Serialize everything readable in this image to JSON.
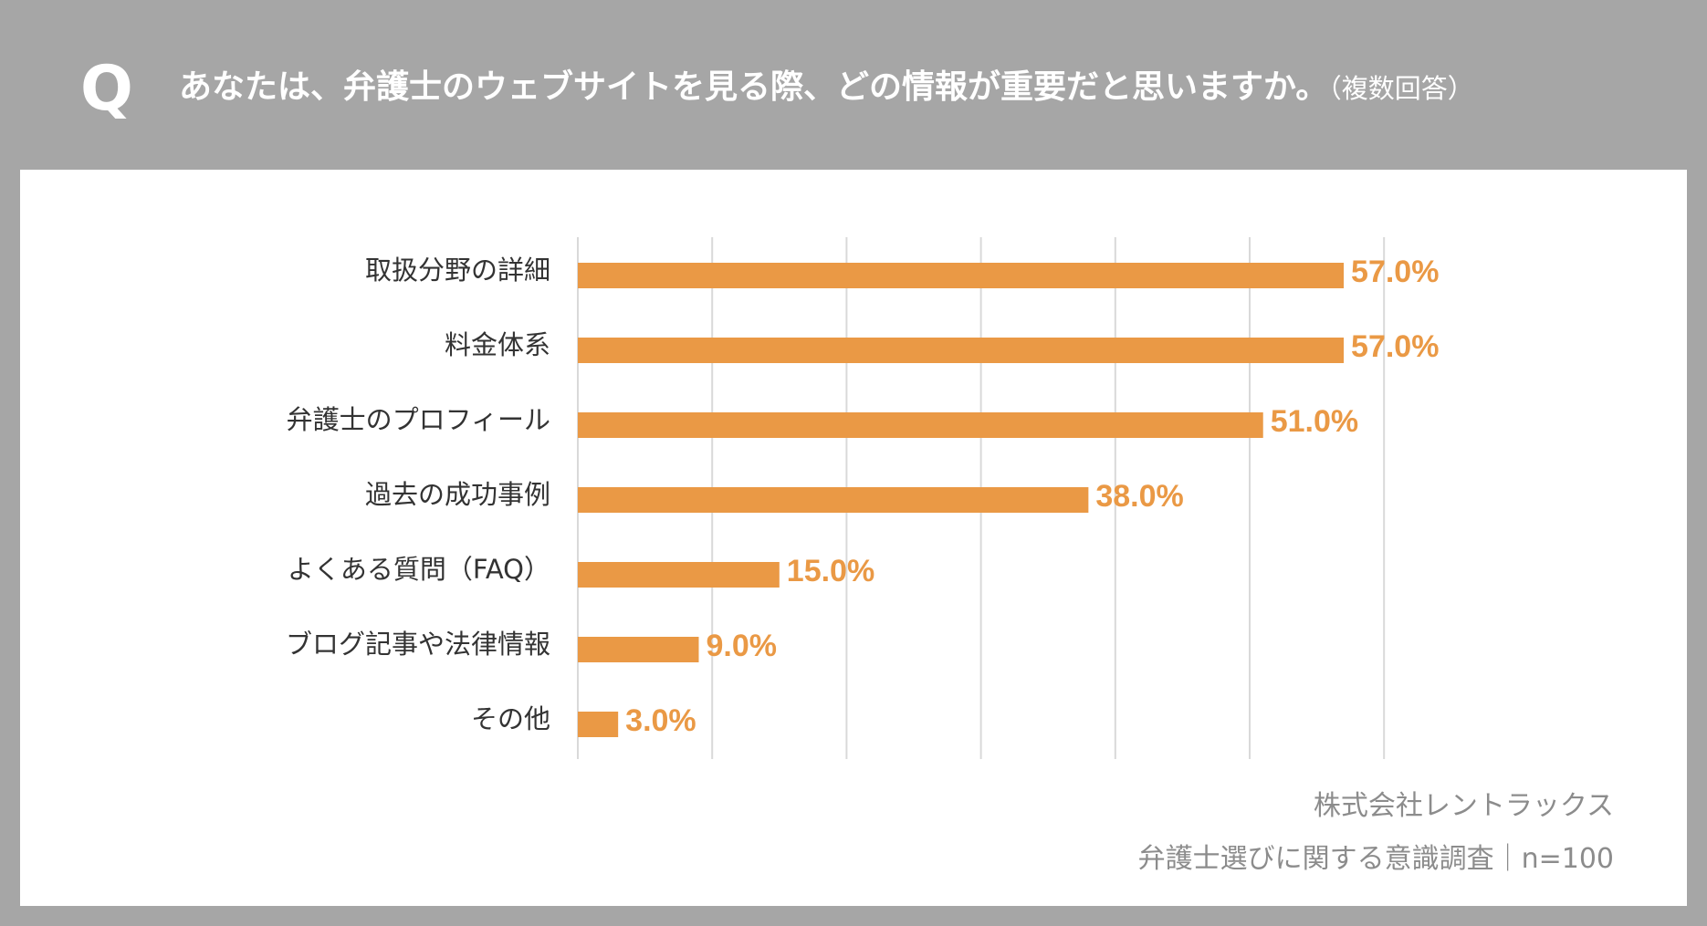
{
  "header": {
    "q_mark": "Q",
    "question": "あなたは、弁護士のウェブサイトを見る際、どの情報が重要だと思いますか。",
    "note": "（複数回答）"
  },
  "chart_data": {
    "type": "bar",
    "orientation": "horizontal",
    "categories": [
      "取扱分野の詳細",
      "料金体系",
      "弁護士のプロフィール",
      "過去の成功事例",
      "よくある質問（FAQ）",
      "ブログ記事や法律情報",
      "その他"
    ],
    "values": [
      57.0,
      57.0,
      51.0,
      38.0,
      15.0,
      9.0,
      3.0
    ],
    "value_labels": [
      "57.0%",
      "57.0%",
      "51.0%",
      "38.0%",
      "15.0%",
      "9.0%",
      "3.0%"
    ],
    "xlim": [
      0,
      60
    ],
    "grid_step": 10,
    "grid": true,
    "unit": "%",
    "bar_color": "#ea9945",
    "label_color": "#ea9945",
    "grid_color": "#d9d9d9"
  },
  "footer": {
    "company": "株式会社レントラックス",
    "survey": "弁護士選びに関する意識調査｜n=100"
  },
  "colors": {
    "frame": "#a6a6a6",
    "panel": "#ffffff",
    "text": "#333333",
    "credit": "#8c8c8c"
  }
}
